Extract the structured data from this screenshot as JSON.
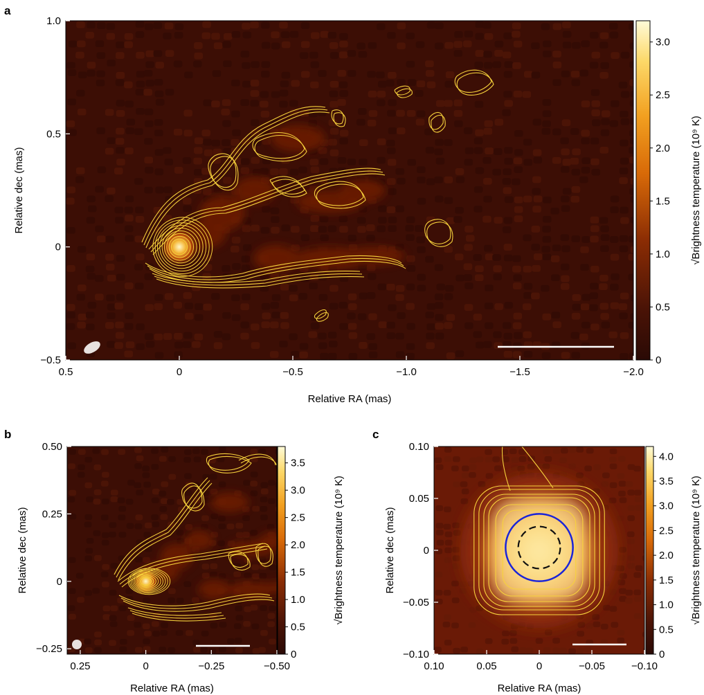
{
  "figure": {
    "panel_labels": [
      "a",
      "b",
      "c"
    ]
  },
  "chart_data": [
    {
      "panel": "a",
      "type": "heatmap",
      "xlabel": "Relative RA (mas)",
      "ylabel": "Relative dec (mas)",
      "colorbar_label": "√Brightness temperature (10⁹ K)",
      "xlim": [
        0.5,
        -2.0
      ],
      "ylim": [
        -0.5,
        1.0
      ],
      "xticks": [
        0.5,
        0,
        -0.5,
        -1.0,
        -1.5,
        -2.0
      ],
      "xtick_labels": [
        "0.5",
        "0",
        "−0.5",
        "−1.0",
        "−1.5",
        "−2.0"
      ],
      "yticks": [
        -0.5,
        0,
        0.5,
        1.0
      ],
      "ytick_labels": [
        "−0.5",
        "0",
        "0.5",
        "1.0"
      ],
      "cbar_range": [
        0,
        3.2
      ],
      "cbar_ticks": [
        0,
        0.5,
        1.0,
        1.5,
        2.0,
        2.5,
        3.0
      ],
      "cbar_tick_labels": [
        "0",
        "0.5",
        "1.0",
        "1.5",
        "2.0",
        "2.5",
        "3.0"
      ],
      "core": {
        "x": 0.0,
        "y": 0.0
      },
      "grid": false
    },
    {
      "panel": "b",
      "type": "heatmap",
      "xlabel": "Relative RA (mas)",
      "ylabel": "Relative dec (mas)",
      "colorbar_label": "√Brightness temperature (10⁹ K)",
      "xlim": [
        0.3,
        -0.5
      ],
      "ylim": [
        -0.27,
        0.5
      ],
      "xticks": [
        0.25,
        0,
        -0.25,
        -0.5
      ],
      "xtick_labels": [
        "0.25",
        "0",
        "−0.25",
        "−0.50"
      ],
      "yticks": [
        -0.25,
        0,
        0.25,
        0.5
      ],
      "ytick_labels": [
        "−0.25",
        "0",
        "0.25",
        "0.50"
      ],
      "cbar_range": [
        0,
        3.8
      ],
      "cbar_ticks": [
        0,
        0.5,
        1.0,
        1.5,
        2.0,
        2.5,
        3.0,
        3.5
      ],
      "cbar_tick_labels": [
        "0",
        "0.5",
        "1.0",
        "1.5",
        "2.0",
        "2.5",
        "3.0",
        "3.5"
      ],
      "core": {
        "x": 0.0,
        "y": 0.0
      },
      "grid": false
    },
    {
      "panel": "c",
      "type": "heatmap",
      "xlabel": "Relative RA (mas)",
      "ylabel": "Relative dec (mas)",
      "colorbar_label": "√Brightness temperature (10⁹ K)",
      "xlim": [
        0.1,
        -0.1
      ],
      "ylim": [
        -0.1,
        0.1
      ],
      "xticks": [
        0.1,
        0.05,
        0,
        -0.05,
        -0.1
      ],
      "xtick_labels": [
        "0.10",
        "0.05",
        "0",
        "−0.05",
        "−0.10"
      ],
      "yticks": [
        -0.1,
        -0.05,
        0,
        0.05,
        0.1
      ],
      "ytick_labels": [
        "−0.10",
        "−0.05",
        "0",
        "0.05",
        "0.10"
      ],
      "cbar_range": [
        0,
        4.2
      ],
      "cbar_ticks": [
        0,
        0.5,
        1.0,
        1.5,
        2.0,
        2.5,
        3.0,
        3.5,
        4.0
      ],
      "cbar_tick_labels": [
        "0",
        "0.5",
        "1.0",
        "1.5",
        "2.0",
        "2.5",
        "3.0",
        "3.5",
        "4.0"
      ],
      "core": {
        "x": 0.0,
        "y": 0.0
      },
      "circle_solid_radius": 0.032,
      "circle_dashed_radius": 0.02,
      "grid": false
    }
  ]
}
